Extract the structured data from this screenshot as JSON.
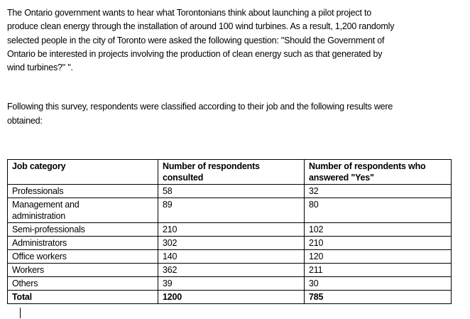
{
  "paragraphs": {
    "intro": "The Ontario government wants to hear what Torontonians think about launching a pilot project to\nproduce clean energy through the installation of around 100 wind turbines. As a result, 1,200 randomly\nselected people in the city of Toronto were asked the following question: \"Should the Government of\nOntario be interested in projects involving the production of clean energy such as that generated by\nwind turbines?\" \".",
    "classification": "Following this survey, respondents were classified according to their job and the following results were\nobtained:"
  },
  "table": {
    "headers": [
      {
        "key": "job-category",
        "label": "Job category"
      },
      {
        "key": "consulted",
        "label": "Number of respondents\nconsulted"
      },
      {
        "key": "answered-yes",
        "label": "Number of respondents who\nanswered \"Yes\""
      }
    ],
    "rows": [
      {
        "job": "Professionals",
        "consulted": "58",
        "yes": "32",
        "bold": false
      },
      {
        "job": "Management and\nadministration",
        "consulted": "89",
        "yes": "80",
        "bold": false
      },
      {
        "job": "Semi-professionals",
        "consulted": "210",
        "yes": "102",
        "bold": false
      },
      {
        "job": "Administrators",
        "consulted": "302",
        "yes": "210",
        "bold": false
      },
      {
        "job": "Office workers",
        "consulted": "140",
        "yes": "120",
        "bold": false
      },
      {
        "job": "Workers",
        "consulted": "362",
        "yes": "211",
        "bold": false
      },
      {
        "job": "Others",
        "consulted": "39",
        "yes": "30",
        "bold": false
      },
      {
        "job": "Total",
        "consulted": "1200",
        "yes": "785",
        "bold": true
      }
    ]
  },
  "colors": {
    "text": "#000000",
    "border": "#000000",
    "background": "#ffffff"
  }
}
